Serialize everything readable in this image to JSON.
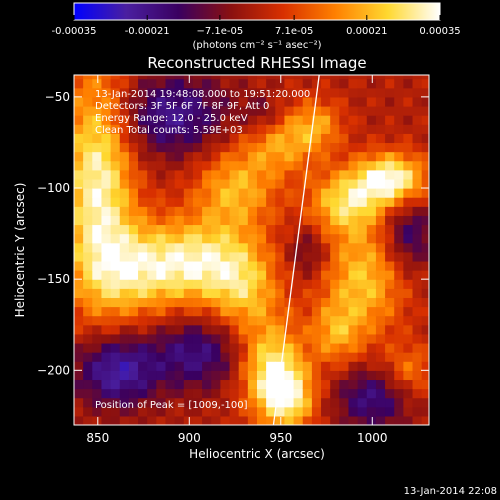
{
  "colorbar": {
    "tick_labels": [
      "-0.00035",
      "-0.00021",
      "−7.1e-05",
      "7.1e-05",
      "0.00021",
      "0.00035"
    ],
    "tick_values": [
      -0.00035,
      -0.00021,
      -7.1e-05,
      7.1e-05,
      0.00021,
      0.00035
    ],
    "range": [
      -0.00035,
      0.00035
    ],
    "units": "(photons cm⁻² s⁻¹ asec⁻²)",
    "colors": [
      "#0000ff",
      "#4a1fa0",
      "#3a0060",
      "#8a1010",
      "#d83000",
      "#ff8000",
      "#ffd830",
      "#ffffff"
    ]
  },
  "chart_data": {
    "type": "heatmap",
    "title": "Reconstructed RHESSI Image",
    "xlabel": "Heliocentric X (arcsec)",
    "ylabel": "Heliocentric Y (arcsec)",
    "xlim": [
      837,
      1031
    ],
    "ylim": [
      -230,
      -38
    ],
    "x_ticks": [
      850,
      900,
      950,
      1000
    ],
    "x_tick_labels": [
      "850",
      "900",
      "950",
      "1000"
    ],
    "y_ticks": [
      -50,
      -100,
      -150,
      -200
    ],
    "y_tick_labels": [
      "−50",
      "−100",
      "−150",
      "−200"
    ],
    "annotations": [
      "13-Jan-2014 19:48:08.000 to 19:51:20.000",
      "Detectors: 3F 5F 6F 7F 8F 9F, Att 0",
      "Energy Range: 12.0 - 25.0 keV",
      "Clean    Total counts: 5.59E+03",
      "Position of Peak = [1009,-100]"
    ],
    "limb": [
      [
        971,
        -38
      ],
      [
        946,
        -230
      ]
    ],
    "peak": [
      1009,
      -100
    ],
    "sources": [
      {
        "x": 850,
        "y": -95,
        "sx": 14,
        "sy": 45,
        "a": 0.00032
      },
      {
        "x": 870,
        "y": -145,
        "sx": 20,
        "sy": 18,
        "a": 0.00023
      },
      {
        "x": 905,
        "y": -140,
        "sx": 20,
        "sy": 16,
        "a": 0.00026
      },
      {
        "x": 930,
        "y": -155,
        "sx": 14,
        "sy": 18,
        "a": 0.0002
      },
      {
        "x": 925,
        "y": -100,
        "sx": 16,
        "sy": 16,
        "a": 0.00021
      },
      {
        "x": 950,
        "y": -75,
        "sx": 14,
        "sy": 12,
        "a": 0.00018
      },
      {
        "x": 945,
        "y": -200,
        "sx": 12,
        "sy": 18,
        "a": 0.0003
      },
      {
        "x": 955,
        "y": -215,
        "sx": 10,
        "sy": 12,
        "a": 0.00024
      },
      {
        "x": 1010,
        "y": -95,
        "sx": 14,
        "sy": 10,
        "a": 0.00035
      },
      {
        "x": 985,
        "y": -108,
        "sx": 14,
        "sy": 12,
        "a": 0.00024
      },
      {
        "x": 970,
        "y": -65,
        "sx": 10,
        "sy": 10,
        "a": 0.00016
      },
      {
        "x": 995,
        "y": -150,
        "sx": 16,
        "sy": 22,
        "a": 0.00023
      },
      {
        "x": 980,
        "y": -180,
        "sx": 10,
        "sy": 12,
        "a": 0.00016
      },
      {
        "x": 1020,
        "y": -200,
        "sx": 10,
        "sy": 10,
        "a": 0.00014
      },
      {
        "x": 860,
        "y": -200,
        "sx": 16,
        "sy": 14,
        "a": -0.00026
      },
      {
        "x": 905,
        "y": -190,
        "sx": 18,
        "sy": 14,
        "a": -0.0002
      },
      {
        "x": 890,
        "y": -60,
        "sx": 22,
        "sy": 16,
        "a": -0.00022
      },
      {
        "x": 940,
        "y": -60,
        "sx": 8,
        "sy": 8,
        "a": -0.0001
      },
      {
        "x": 1020,
        "y": -125,
        "sx": 10,
        "sy": 14,
        "a": -0.00018
      },
      {
        "x": 1000,
        "y": -215,
        "sx": 14,
        "sy": 12,
        "a": -0.0002
      },
      {
        "x": 965,
        "y": -135,
        "sx": 8,
        "sy": 10,
        "a": -0.00012
      }
    ]
  },
  "footer": {
    "timestamp": "13-Jan-2014 22:08"
  }
}
